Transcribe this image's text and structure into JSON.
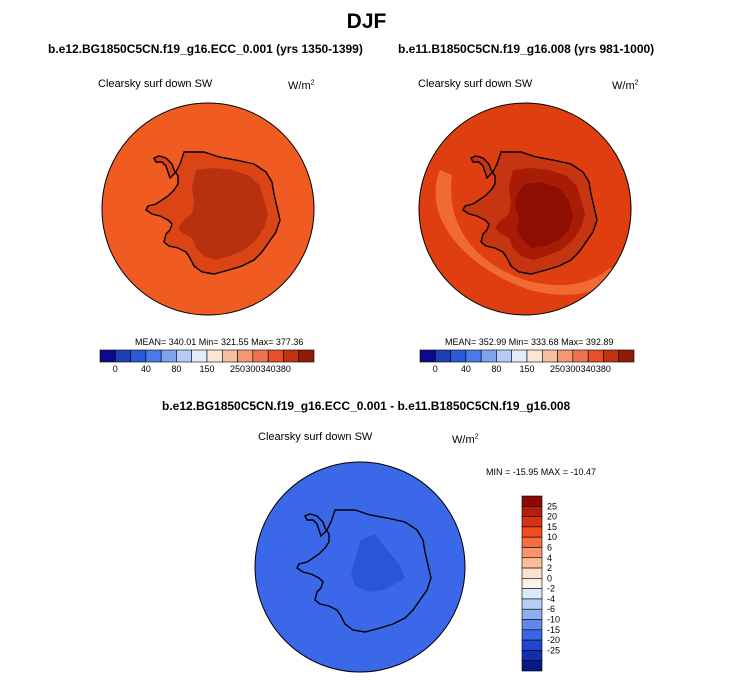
{
  "title": "DJF",
  "panels": [
    {
      "case": "b.e12.BG1850C5CN.f19_g16.ECC_0.001 (yrs 1350-1399)",
      "variable": "Clearsky surf down SW",
      "units": "W/m",
      "units_exp": "2",
      "stats": "MEAN= 340.01  Min= 321.55  Max= 377.36"
    },
    {
      "case": "b.e11.B1850C5CN.f19_g16.008 (yrs 981-1000)",
      "variable": "Clearsky surf down SW",
      "units": "W/m",
      "units_exp": "2",
      "stats": "MEAN= 352.99  Min= 333.68  Max= 392.89"
    }
  ],
  "diff_panel": {
    "case": "b.e12.BG1850C5CN.f19_g16.ECC_0.001 - b.e11.B1850C5CN.f19_g16.008",
    "variable": "Clearsky surf down SW",
    "units": "W/m",
    "units_exp": "2",
    "stats": "MIN = -15.95 MAX = -10.47"
  },
  "chart_data": [
    {
      "type": "heatmap",
      "subtype": "polar stereographic map (Antarctica)",
      "title": "b.e12.BG1850C5CN.f19_g16.ECC_0.001 (yrs 1350-1399)",
      "variable": "Clearsky surf down SW",
      "units": "W/m2",
      "mean": 340.01,
      "min": 321.55,
      "max": 377.36,
      "colorbar_ticks": [
        "0",
        "40",
        "80",
        "150",
        "250",
        "300",
        "340",
        "380"
      ],
      "colorbar_colors": [
        "#0a0a8a",
        "#1f3fb8",
        "#2a5ad8",
        "#4a7ae8",
        "#7ea4f0",
        "#b4ccf6",
        "#e4ecfb",
        "#fbe6d6",
        "#f6c0a2",
        "#f29a72",
        "#ee7450",
        "#e84e2a",
        "#c43210",
        "#8e1a08"
      ],
      "region_colors": {
        "ocean": "#f05b22",
        "interior": "#b8310f",
        "coast": "#db4414"
      }
    },
    {
      "type": "heatmap",
      "subtype": "polar stereographic map (Antarctica)",
      "title": "b.e11.B1850C5CN.f19_g16.008 (yrs 981-1000)",
      "variable": "Clearsky surf down SW",
      "units": "W/m2",
      "mean": 352.99,
      "min": 333.68,
      "max": 392.89,
      "colorbar_ticks": [
        "0",
        "40",
        "80",
        "150",
        "250",
        "300",
        "340",
        "380"
      ],
      "colorbar_colors": [
        "#0a0a8a",
        "#1f3fb8",
        "#2a5ad8",
        "#4a7ae8",
        "#7ea4f0",
        "#b4ccf6",
        "#e4ecfb",
        "#fbe6d6",
        "#f6c0a2",
        "#f29a72",
        "#ee7450",
        "#e84e2a",
        "#c43210",
        "#8e1a08"
      ],
      "region_colors": {
        "ocean": "#df3f10",
        "interior": "#8e0e02",
        "coast": "#c53512",
        "band": "#f06a34"
      }
    },
    {
      "type": "heatmap",
      "subtype": "polar stereographic difference map (Antarctica)",
      "title": "b.e12.BG1850C5CN.f19_g16.ECC_0.001 - b.e11.B1850C5CN.f19_g16.008",
      "variable": "Clearsky surf down SW",
      "units": "W/m2",
      "min": -15.95,
      "max": -10.47,
      "colorbar_ticks": [
        "25",
        "20",
        "15",
        "10",
        "6",
        "4",
        "2",
        "0",
        "-2",
        "-4",
        "-6",
        "-10",
        "-15",
        "-20",
        "-25"
      ],
      "colorbar_colors": [
        "#8a0a08",
        "#b41e0c",
        "#d83210",
        "#f04e1e",
        "#f57040",
        "#f8956a",
        "#fbbd9a",
        "#fde2cf",
        "#fdf2e8",
        "#dde8fa",
        "#b8cff3",
        "#8fb0ee",
        "#5f88ea",
        "#3a66e4",
        "#1f45d2",
        "#122eaa",
        "#071a86"
      ],
      "region_colors": {
        "ocean": "#3a68e8",
        "interior": "#2a55d8"
      }
    }
  ]
}
